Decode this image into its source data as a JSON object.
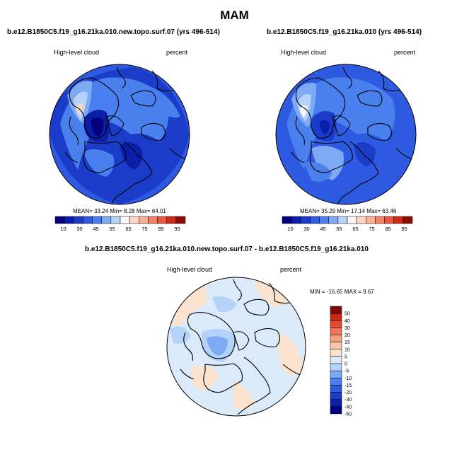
{
  "page": {
    "title": "MAM"
  },
  "colors": {
    "abs_scale": [
      "#02007f",
      "#0a1ea8",
      "#1a3cc8",
      "#2d5ae0",
      "#4a80ee",
      "#7eaaf3",
      "#b5d3f8",
      "#f7f7f7",
      "#fcd6c2",
      "#f9b093",
      "#f48467",
      "#e85a3d",
      "#cc2d17",
      "#8e0a07"
    ],
    "diff_scale": [
      "#02007f",
      "#0a1ea8",
      "#1a3cc8",
      "#2d5ae0",
      "#4a80ee",
      "#7eaaf3",
      "#b5d3f8",
      "#dbeaf8",
      "#fbe2cf",
      "#f9c7a8",
      "#f8a07c",
      "#f27758",
      "#e84a2e",
      "#cc2512",
      "#7e0a06"
    ],
    "land_outline": "#000000"
  },
  "panels": [
    {
      "title": "b.e12.B1850C5.f19_g16.21ka.010.new.topo.surf.07 (yrs 496-514)",
      "variable": "High-level cloud",
      "units": "percent",
      "stats": "MEAN=  33.24  Min=   8.28  Max=  64.01"
    },
    {
      "title": "b.e12.B1850C5.f19_g16.21ka.010 (yrs 496-514)",
      "variable": "High-level cloud",
      "units": "percent",
      "stats": "MEAN=  35.29  Min=  17.14  Max=  63.46"
    },
    {
      "title": "b.e12.B1850C5.f19_g16.21ka.010.new.topo.surf.07 - b.e12.B1850C5.f19_g16.21ka.010",
      "variable": "High-level cloud",
      "units": "percent",
      "stats": "MIN = -16.65 MAX =   9.67"
    }
  ],
  "chart_data": [
    {
      "type": "heatmap",
      "title": "b.e12.B1850C5.f19_g16.21ka.010.new.topo.surf.07 (yrs 496-514)",
      "projection": "north polar stereographic",
      "variable": "High-level cloud",
      "units": "percent",
      "mean": 33.24,
      "min": 8.28,
      "max": 64.01,
      "colorbar_levels": [
        10,
        20,
        30,
        40,
        45,
        50,
        55,
        60,
        65,
        70,
        75,
        80,
        85,
        90,
        95
      ],
      "colorbar_labels": [
        "10",
        "30",
        "45",
        "55",
        "65",
        "75",
        "85",
        "95"
      ]
    },
    {
      "type": "heatmap",
      "title": "b.e12.B1850C5.f19_g16.21ka.010 (yrs 496-514)",
      "projection": "north polar stereographic",
      "variable": "High-level cloud",
      "units": "percent",
      "mean": 35.29,
      "min": 17.14,
      "max": 63.46,
      "colorbar_levels": [
        10,
        20,
        30,
        40,
        45,
        50,
        55,
        60,
        65,
        70,
        75,
        80,
        85,
        90,
        95
      ],
      "colorbar_labels": [
        "10",
        "30",
        "45",
        "55",
        "65",
        "75",
        "85",
        "95"
      ]
    },
    {
      "type": "heatmap",
      "title": "b.e12.B1850C5.f19_g16.21ka.010.new.topo.surf.07 - b.e12.B1850C5.f19_g16.21ka.010",
      "projection": "north polar stereographic",
      "variable": "High-level cloud",
      "units": "percent",
      "min": -16.65,
      "max": 9.67,
      "colorbar_labels": [
        "50",
        "40",
        "30",
        "20",
        "15",
        "10",
        "5",
        "0",
        "-5",
        "-10",
        "-15",
        "-20",
        "-30",
        "-40",
        "-50"
      ]
    }
  ]
}
